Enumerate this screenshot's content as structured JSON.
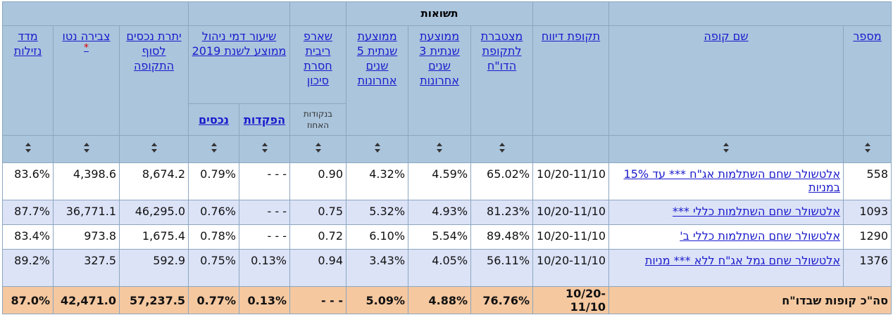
{
  "header": {
    "group": "תשואות",
    "columns": [
      "מספר",
      "שם קופה",
      "תקופת דיווח",
      "מצטברת לתקופת הדו\"ח",
      "ממוצעת שנתית 3 שנים אחרונות",
      "ממוצעת שנתית 5 שנים אחרונות",
      "שארפ ריבית חסרת סיכון",
      "שיעור דמי ניהול ממוצע לשנת 2019",
      "יתרת נכסים לסוף התקופה",
      "צבירה נטו",
      "מדד נזילות"
    ],
    "sharpe_note": "בנקודות האחוז",
    "fee_sub": [
      "הפקדות",
      "נכסים"
    ],
    "asterisk": "*"
  },
  "table": {
    "rows": [
      [
        "558",
        "אלטשולר שחם השתלמות אג\"ח *** עד 15% במניות",
        "10/20-11/10",
        "65.02%",
        "4.59%",
        "4.32%",
        "0.90",
        "- - -",
        "0.79%",
        "8,674.2",
        "4,398.6",
        "83.6%"
      ],
      [
        "1093",
        "אלטשולר שחם השתלמות כללי ***",
        "10/20-11/10",
        "81.23%",
        "4.93%",
        "5.32%",
        "0.75",
        "- - -",
        "0.76%",
        "46,295.0",
        "36,771.1",
        "87.7%"
      ],
      [
        "1290",
        "אלטשולר שחם השתלמות כללי ב'",
        "10/20-11/10",
        "89.48%",
        "5.54%",
        "6.10%",
        "0.72",
        "- - -",
        "0.78%",
        "1,675.4",
        "973.8",
        "83.4%"
      ],
      [
        "1376",
        "אלטשולר שחם גמל אג\"ח ללא *** מניות",
        "10/20-11/10",
        "56.11%",
        "4.05%",
        "3.43%",
        "0.94",
        "0.13%",
        "0.75%",
        "592.9",
        "327.5",
        "89.2%"
      ]
    ],
    "total": [
      "סה\"כ קופות שבדו\"ח",
      "10/20-11/10",
      "76.76%",
      "4.88%",
      "5.09%",
      "- - -",
      "0.13%",
      "0.77%",
      "57,237.5",
      "42,471.0",
      "87.0%"
    ]
  }
}
